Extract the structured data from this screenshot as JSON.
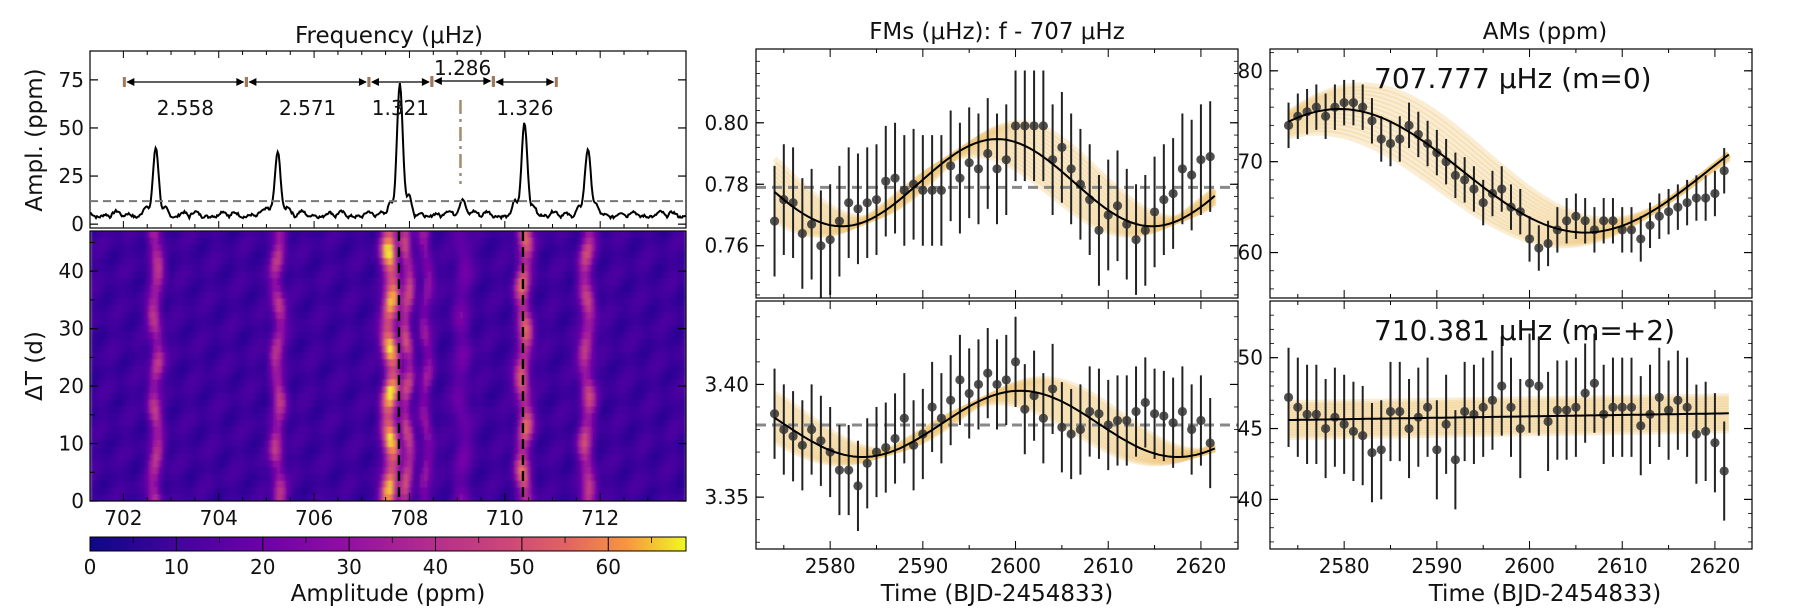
{
  "figure": {
    "spectrum_title": "Frequency (μHz)",
    "fm_title": "FMs (μHz): f - 707 μHz",
    "am_title": "AMs (ppm)",
    "colorbar_label": "Amplitude (ppm)",
    "time_xlabel": "Time (BJD-2454833)",
    "spec_ylabel": "Ampl. (ppm)",
    "heat_ylabel": "ΔT (d)",
    "label_m0": "707.777 μHz (m=0)",
    "label_m2": "710.381 μHz (m=+2)"
  },
  "colors": {
    "curve": "#000000",
    "threshold": "#808080",
    "spacing": "#a0785a",
    "band": "#f0c878",
    "points": "#333333"
  },
  "chart_data": [
    {
      "type": "line",
      "name": "amplitude-spectrum",
      "title": "Frequency (μHz)",
      "xlabel": "",
      "ylabel": "Ampl. (ppm)",
      "xlim": [
        701.3,
        713.8
      ],
      "ylim": [
        -2,
        90
      ],
      "yticks": [
        0,
        25,
        50,
        75
      ],
      "threshold": 12,
      "peaks": [
        {
          "f": 702.68,
          "a": 33,
          "w": 0.06
        },
        {
          "f": 705.24,
          "a": 33,
          "w": 0.06
        },
        {
          "f": 707.8,
          "a": 69,
          "w": 0.06
        },
        {
          "f": 709.12,
          "a": 9,
          "w": 0.06
        },
        {
          "f": 710.41,
          "a": 47,
          "w": 0.06
        },
        {
          "f": 711.74,
          "a": 35,
          "w": 0.06
        }
      ],
      "spacings": [
        {
          "from": 702.02,
          "to": 704.58,
          "label": "2.558",
          "row": "lower"
        },
        {
          "from": 704.58,
          "to": 707.15,
          "label": "2.571",
          "row": "lower"
        },
        {
          "from": 707.15,
          "to": 708.47,
          "label": "1.321",
          "row": "lower"
        },
        {
          "from": 708.47,
          "to": 709.76,
          "label": "1.286",
          "row": "upper"
        },
        {
          "from": 709.76,
          "to": 711.08,
          "label": "1.326",
          "row": "lower"
        }
      ],
      "marker_line": 709.07
    },
    {
      "type": "heatmap",
      "name": "sliding-window-spectrum",
      "xlabel": "",
      "ylabel": "ΔT (d)",
      "xlim": [
        701.3,
        713.8
      ],
      "ylim": [
        0,
        47
      ],
      "xticks": [
        702,
        704,
        706,
        708,
        710,
        712
      ],
      "yticks": [
        0,
        10,
        20,
        30,
        40
      ],
      "dashed_lines": [
        707.78,
        710.38
      ],
      "colorbar": {
        "label": "Amplitude (ppm)",
        "min": 0,
        "max": 69,
        "ticks": [
          0,
          10,
          20,
          30,
          40,
          50,
          60
        ]
      }
    },
    {
      "type": "scatter",
      "name": "fm-m0",
      "xlim": [
        2572,
        2624
      ],
      "ylim": [
        0.743,
        0.824
      ],
      "xticks": [
        2580,
        2590,
        2600,
        2610,
        2620
      ],
      "yticks": [
        0.76,
        0.78,
        0.8
      ],
      "mean_line": 0.779,
      "x": [
        2574,
        2575,
        2576,
        2577,
        2578,
        2579,
        2580,
        2581,
        2582,
        2583,
        2584,
        2585,
        2586,
        2587,
        2588,
        2589,
        2590,
        2591,
        2592,
        2593,
        2594,
        2595,
        2596,
        2597,
        2598,
        2599,
        2600,
        2601,
        2602,
        2603,
        2604,
        2605,
        2606,
        2607,
        2608,
        2609,
        2610,
        2611,
        2612,
        2613,
        2614,
        2615,
        2616,
        2617,
        2618,
        2619,
        2620,
        2621
      ],
      "y": [
        0.768,
        0.775,
        0.774,
        0.764,
        0.767,
        0.76,
        0.762,
        0.768,
        0.774,
        0.772,
        0.774,
        0.775,
        0.781,
        0.782,
        0.778,
        0.78,
        0.778,
        0.778,
        0.778,
        0.786,
        0.782,
        0.787,
        0.785,
        0.79,
        0.785,
        0.788,
        0.799,
        0.799,
        0.799,
        0.799,
        0.788,
        0.792,
        0.785,
        0.78,
        0.775,
        0.765,
        0.77,
        0.773,
        0.767,
        0.762,
        0.765,
        0.771,
        0.775,
        0.777,
        0.785,
        0.783,
        0.788,
        0.789
      ],
      "err": [
        0.018,
        0.018,
        0.018,
        0.018,
        0.018,
        0.018,
        0.018,
        0.018,
        0.018,
        0.018,
        0.018,
        0.018,
        0.018,
        0.018,
        0.018,
        0.018,
        0.018,
        0.018,
        0.018,
        0.018,
        0.018,
        0.018,
        0.018,
        0.018,
        0.018,
        0.018,
        0.018,
        0.018,
        0.018,
        0.018,
        0.018,
        0.018,
        0.018,
        0.018,
        0.018,
        0.018,
        0.018,
        0.018,
        0.018,
        0.018,
        0.018,
        0.018,
        0.018,
        0.018,
        0.018,
        0.018,
        0.018,
        0.018
      ],
      "fit": {
        "offset": 0.7805,
        "amp": 0.0142,
        "period": 33.5,
        "peak_at": 2598,
        "band": 0.004
      }
    },
    {
      "type": "scatter",
      "name": "am-m0",
      "label": "707.777 μHz (m=0)",
      "xlim": [
        2572,
        2624
      ],
      "ylim": [
        55,
        82.4
      ],
      "yticks": [
        60,
        70,
        80
      ],
      "x": [
        2574,
        2575,
        2576,
        2577,
        2578,
        2579,
        2580,
        2581,
        2582,
        2583,
        2584,
        2585,
        2586,
        2587,
        2588,
        2589,
        2590,
        2591,
        2592,
        2593,
        2594,
        2595,
        2596,
        2597,
        2598,
        2599,
        2600,
        2601,
        2602,
        2603,
        2604,
        2605,
        2606,
        2607,
        2608,
        2609,
        2610,
        2611,
        2612,
        2613,
        2614,
        2615,
        2616,
        2617,
        2618,
        2619,
        2620,
        2621
      ],
      "y": [
        74.0,
        75.0,
        75.5,
        76.0,
        75.0,
        76.0,
        76.5,
        76.5,
        76.0,
        74.5,
        72.5,
        72.0,
        72.5,
        74.0,
        73.0,
        72.0,
        71.0,
        70.0,
        68.5,
        68.0,
        67.0,
        65.5,
        66.5,
        67.0,
        65.0,
        64.5,
        61.5,
        60.5,
        61.0,
        62.5,
        63.5,
        64.0,
        63.5,
        62.5,
        63.5,
        63.5,
        62.5,
        62.5,
        61.5,
        63.0,
        64.0,
        64.5,
        65.0,
        65.5,
        66.0,
        66.0,
        66.5,
        69.0
      ],
      "err": [
        2.5,
        2.5,
        2.5,
        2.5,
        2.5,
        2.5,
        2.5,
        2.5,
        2.5,
        2.5,
        2.5,
        2.5,
        2.5,
        2.5,
        2.5,
        2.5,
        2.5,
        2.5,
        2.5,
        2.5,
        2.5,
        2.5,
        2.5,
        2.5,
        2.5,
        2.5,
        2.5,
        2.5,
        2.5,
        2.5,
        2.5,
        2.5,
        2.5,
        2.5,
        2.5,
        2.5,
        2.5,
        2.5,
        2.5,
        2.5,
        2.5,
        2.5,
        2.5,
        2.5,
        2.5,
        2.5,
        2.5,
        2.5
      ],
      "fit": {
        "offset": 69.0,
        "amp": 6.8,
        "period": 53,
        "peak_at": 2579.5,
        "band": 2.0
      }
    },
    {
      "type": "scatter",
      "name": "fm-m2",
      "xlim": [
        2572,
        2624
      ],
      "ylim": [
        3.327,
        3.437
      ],
      "yticks": [
        3.35,
        3.4
      ],
      "mean_line": 3.382,
      "x": [
        2574,
        2575,
        2576,
        2577,
        2578,
        2579,
        2580,
        2581,
        2582,
        2583,
        2584,
        2585,
        2586,
        2587,
        2588,
        2589,
        2590,
        2591,
        2592,
        2593,
        2594,
        2595,
        2596,
        2597,
        2598,
        2599,
        2600,
        2601,
        2602,
        2603,
        2604,
        2605,
        2606,
        2607,
        2608,
        2609,
        2610,
        2611,
        2612,
        2613,
        2614,
        2615,
        2616,
        2617,
        2618,
        2619,
        2620,
        2621
      ],
      "y": [
        3.387,
        3.38,
        3.377,
        3.373,
        3.38,
        3.375,
        3.37,
        3.362,
        3.362,
        3.355,
        3.365,
        3.37,
        3.372,
        3.376,
        3.385,
        3.373,
        3.378,
        3.39,
        3.385,
        3.393,
        3.402,
        3.396,
        3.4,
        3.405,
        3.4,
        3.402,
        3.41,
        3.389,
        3.395,
        3.385,
        3.398,
        3.381,
        3.378,
        3.38,
        3.388,
        3.387,
        3.382,
        3.384,
        3.384,
        3.388,
        3.392,
        3.387,
        3.386,
        3.383,
        3.388,
        3.38,
        3.384,
        3.374
      ],
      "err": [
        0.02,
        0.02,
        0.02,
        0.02,
        0.02,
        0.02,
        0.02,
        0.02,
        0.02,
        0.02,
        0.02,
        0.02,
        0.02,
        0.02,
        0.02,
        0.02,
        0.02,
        0.02,
        0.02,
        0.02,
        0.02,
        0.02,
        0.02,
        0.02,
        0.02,
        0.02,
        0.02,
        0.02,
        0.02,
        0.02,
        0.02,
        0.02,
        0.02,
        0.02,
        0.02,
        0.02,
        0.02,
        0.02,
        0.02,
        0.02,
        0.02,
        0.02,
        0.02,
        0.02,
        0.02,
        0.02,
        0.02,
        0.02
      ],
      "fit": {
        "offset": 3.3825,
        "amp": 0.0147,
        "period": 34,
        "peak_at": 2600.5,
        "band": 0.004
      }
    },
    {
      "type": "scatter",
      "name": "am-m2",
      "label": "710.381 μHz (m=+2)",
      "xlim": [
        2572,
        2624
      ],
      "ylim": [
        36.5,
        54
      ],
      "yticks": [
        40,
        45,
        50
      ],
      "x": [
        2574,
        2575,
        2576,
        2577,
        2578,
        2579,
        2580,
        2581,
        2582,
        2583,
        2584,
        2585,
        2586,
        2587,
        2588,
        2589,
        2590,
        2591,
        2592,
        2593,
        2594,
        2595,
        2596,
        2597,
        2598,
        2599,
        2600,
        2601,
        2602,
        2603,
        2604,
        2605,
        2606,
        2607,
        2608,
        2609,
        2610,
        2611,
        2612,
        2613,
        2614,
        2615,
        2616,
        2617,
        2618,
        2619,
        2620,
        2621
      ],
      "y": [
        47.2,
        46.5,
        46.0,
        46.0,
        45.0,
        45.8,
        45.3,
        44.8,
        44.5,
        43.3,
        43.5,
        46.2,
        46.2,
        45.0,
        45.8,
        46.5,
        43.5,
        45.3,
        42.8,
        46.2,
        46.0,
        46.5,
        47.0,
        48.0,
        46.5,
        45.0,
        48.2,
        48.0,
        45.5,
        46.3,
        46.3,
        46.5,
        47.5,
        48.2,
        46.0,
        46.5,
        46.5,
        46.5,
        45.2,
        46.0,
        47.2,
        46.3,
        47.0,
        46.5,
        44.6,
        44.8,
        44.0,
        42.0
      ],
      "err": [
        3.5,
        3.5,
        3.5,
        3.5,
        3.5,
        3.5,
        3.5,
        3.5,
        3.5,
        3.5,
        3.5,
        3.5,
        3.5,
        3.5,
        3.5,
        3.5,
        3.5,
        3.5,
        3.5,
        3.5,
        3.5,
        3.5,
        3.5,
        3.5,
        3.5,
        3.5,
        3.5,
        3.5,
        3.5,
        3.5,
        3.5,
        3.5,
        3.5,
        3.5,
        3.5,
        3.5,
        3.5,
        3.5,
        3.5,
        3.5,
        3.5,
        3.5,
        3.5,
        3.5,
        3.5,
        3.5,
        3.5,
        3.5
      ],
      "fit": {
        "offset": 45.6,
        "slope": 0.01,
        "band": 1.2
      }
    }
  ]
}
